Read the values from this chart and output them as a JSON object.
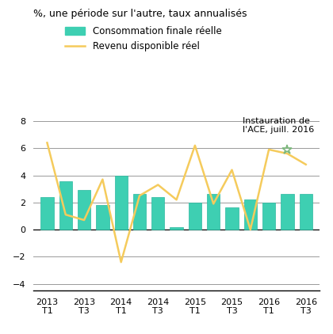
{
  "bar_values": [
    2.4,
    3.55,
    2.9,
    1.8,
    4.0,
    2.6,
    2.4,
    0.2,
    2.0,
    2.6,
    1.65,
    2.2,
    2.0,
    2.65,
    2.6
  ],
  "line_values": [
    6.4,
    1.1,
    0.7,
    3.7,
    -2.4,
    2.5,
    3.3,
    2.2,
    6.2,
    1.9,
    4.4,
    0.0,
    5.9,
    5.6,
    4.8
  ],
  "x_positions": [
    0,
    1,
    2,
    3,
    4,
    5,
    6,
    7,
    8,
    9,
    10,
    11,
    12,
    13,
    14
  ],
  "x_tick_positions": [
    0,
    2,
    4,
    6,
    8,
    10,
    12,
    14
  ],
  "x_tick_labels_top": [
    "2013",
    "2013",
    "2014",
    "2014",
    "2015",
    "2015",
    "2016",
    "2016"
  ],
  "x_tick_labels_bot": [
    "T1",
    "T3",
    "T1",
    "T3",
    "T1",
    "T3",
    "T1",
    "T3"
  ],
  "ylim": [
    -4.5,
    8.8
  ],
  "yticks": [
    -4,
    -2,
    0,
    2,
    4,
    6,
    8
  ],
  "bar_color": "#3ECFB2",
  "bar_edgecolor": "#2AB89F",
  "line_color": "#F5CB5C",
  "line_width": 1.8,
  "sup_title": "%, une période sur l'autre, taux annualisés",
  "legend_bar": "Consommation finale réelle",
  "legend_line": "Revenu disponible réel",
  "annotation_text": "Instauration de\nl'ACE, juill. 2016",
  "star_x": 13,
  "star_y": 5.9,
  "bg_color": "#ffffff",
  "grid_color": "#999999",
  "title_fontsize": 9.0,
  "tick_fontsize": 8.0,
  "legend_fontsize": 8.5,
  "annotation_fontsize": 8.0
}
